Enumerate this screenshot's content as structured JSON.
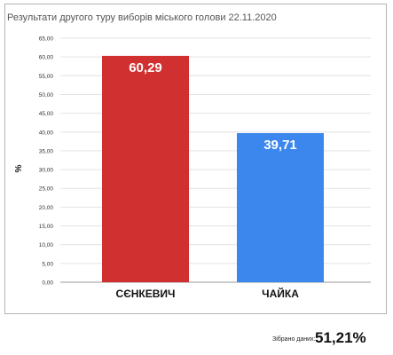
{
  "chart_data": {
    "type": "bar",
    "title": "Результати другого туру виборів міського голови 22.11.2020",
    "xlabel": "",
    "ylabel": "%",
    "categories": [
      "СЄНКЕВИЧ",
      "ЧАЙКА"
    ],
    "values": [
      60.29,
      39.71
    ],
    "value_labels": [
      "60,29",
      "39,71"
    ],
    "colors": [
      "#d0302f",
      "#3b87ee"
    ],
    "ylim": [
      0,
      65
    ],
    "y_ticks": [
      "0,00",
      "5,00",
      "10,00",
      "15,00",
      "20,00",
      "25,00",
      "30,00",
      "35,00",
      "40,00",
      "45,00",
      "50,00",
      "55,00",
      "60,00",
      "65,00"
    ],
    "grid": true,
    "legend": "none"
  },
  "footer": {
    "label": "Зібрано даних:",
    "value": "51,21%"
  }
}
